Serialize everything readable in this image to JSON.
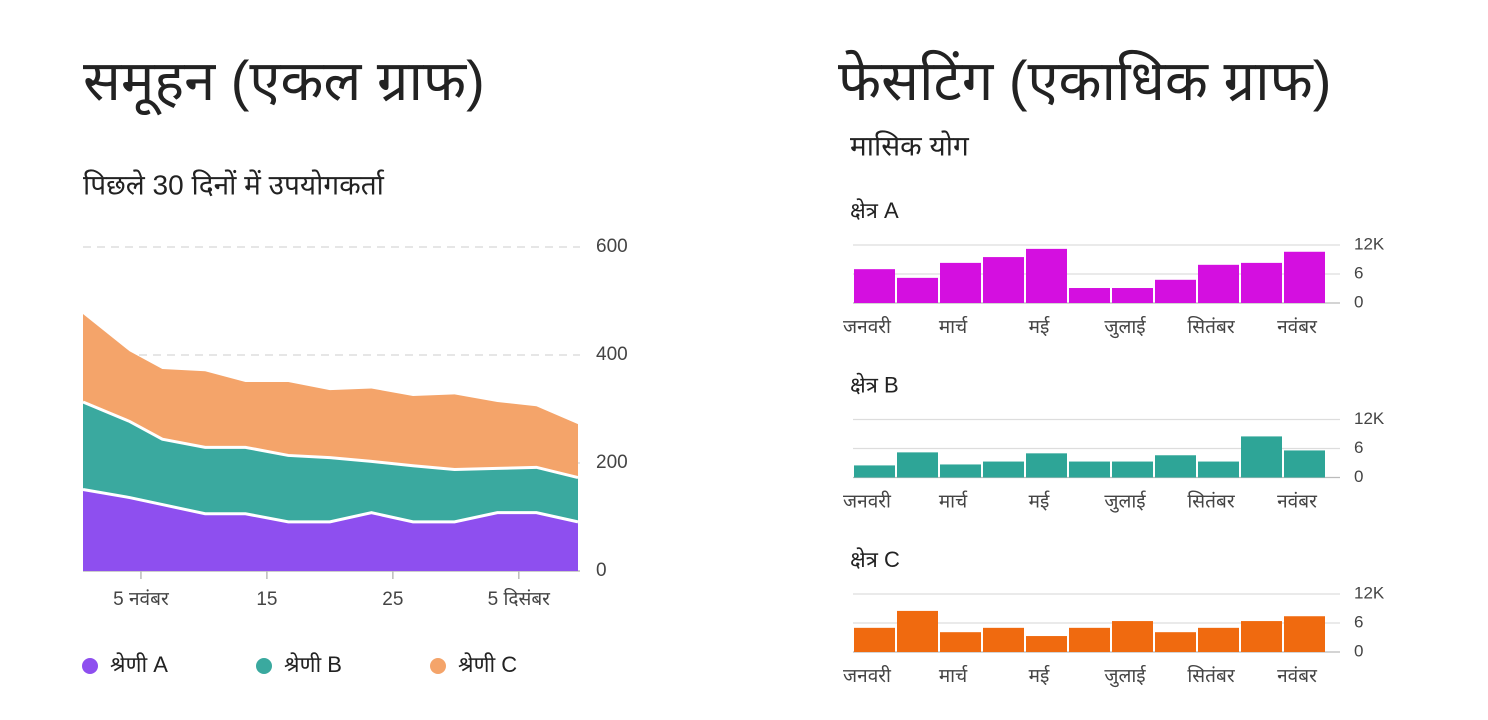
{
  "chart_data": [
    {
      "type": "area",
      "stacked": true,
      "title": "समूहन (एकल ग्राफ)",
      "subtitle": "पिछले 30 दिनों में उपयोगकर्ता",
      "x": [
        0.4,
        4.1,
        6.7,
        10.1,
        13.3,
        16.7,
        20,
        23.3,
        26.6,
        29.9,
        33.3,
        36.4,
        39.7
      ],
      "xlim": [
        0.4,
        39.7
      ],
      "xticks": [
        {
          "value": 5,
          "label": "5 नवंबर"
        },
        15,
        25,
        {
          "value": 35,
          "label": "5 दिसंबर"
        }
      ],
      "ylim": [
        0,
        600
      ],
      "yticks": [
        0,
        200,
        400,
        600
      ],
      "grid": true,
      "series": [
        {
          "name": "श्रेणी A",
          "color": "#8e4fef",
          "values": [
            151,
            136,
            123,
            106,
            106,
            91,
            91,
            108,
            91,
            91,
            108,
            108,
            91
          ]
        },
        {
          "name": "श्रेणी B",
          "color": "#3aa99f",
          "values": [
            162,
            141,
            121,
            123,
            123,
            123,
            119,
            95,
            104,
            97,
            82,
            84,
            82
          ]
        },
        {
          "name": "श्रेणी C",
          "color": "#f4a46a",
          "values": [
            163,
            130,
            130,
            141,
            121,
            136,
            125,
            135,
            129,
            139,
            123,
            113,
            99
          ]
        }
      ]
    },
    {
      "type": "facet_bar",
      "title": "फेसटिंग (एकाधिक ग्राफ)",
      "subtitle": "मासिक योग",
      "categories": [
        "जनवरी",
        null,
        "मार्च",
        null,
        "मई",
        null,
        "जुलाई",
        null,
        "सितंबर",
        null,
        "नवंबर"
      ],
      "ylim": [
        0,
        12
      ],
      "yticks": [
        0,
        6,
        {
          "value": 12,
          "label": "12K"
        }
      ],
      "grid": true,
      "panels": [
        {
          "title": "क्षेत्र A",
          "color": "#d40fe0",
          "values": [
            7.0,
            5.2,
            8.3,
            9.5,
            11.2,
            3.1,
            3.1,
            4.8,
            7.9,
            8.3,
            10.6
          ]
        },
        {
          "title": "क्षेत्र B",
          "color": "#2ea597",
          "values": [
            2.5,
            5.2,
            2.7,
            3.3,
            5.0,
            3.3,
            3.3,
            4.6,
            3.3,
            8.5,
            5.6
          ]
        },
        {
          "title": "क्षेत्र C",
          "color": "#f06a0f",
          "values": [
            5.0,
            8.5,
            4.1,
            5.0,
            3.3,
            5.0,
            6.4,
            4.1,
            5.0,
            6.4,
            7.4
          ]
        }
      ]
    }
  ]
}
